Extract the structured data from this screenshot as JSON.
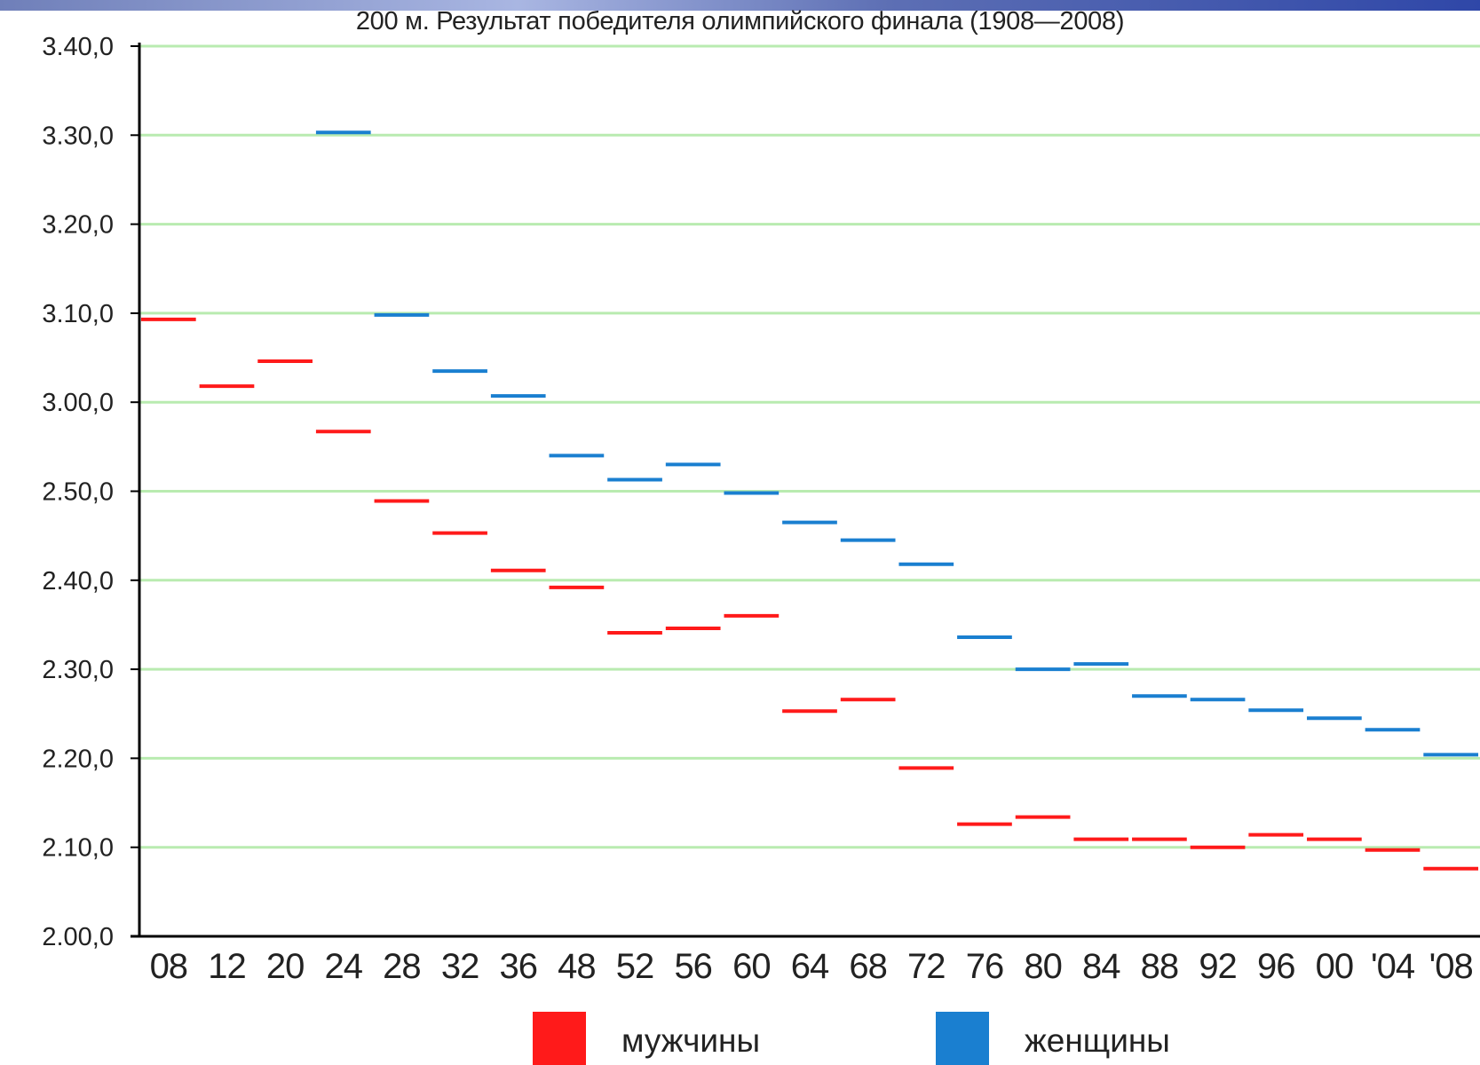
{
  "chart_data": {
    "type": "line",
    "title": "200 м. Результат победителя олимпийского финала (1908—2008)",
    "xlabel": "",
    "ylabel": "",
    "categories": [
      "08",
      "12",
      "20",
      "24",
      "28",
      "32",
      "36",
      "48",
      "52",
      "56",
      "60",
      "64",
      "68",
      "72",
      "76",
      "80",
      "84",
      "88",
      "92",
      "96",
      "00",
      "'04",
      "'08"
    ],
    "y_unit": "seconds",
    "ylim": [
      120,
      220
    ],
    "y_ticks": [
      {
        "value": 120,
        "label": "2.00,0"
      },
      {
        "value": 130,
        "label": "2.10,0"
      },
      {
        "value": 140,
        "label": "2.20,0"
      },
      {
        "value": 150,
        "label": "2.30,0"
      },
      {
        "value": 160,
        "label": "2.40,0"
      },
      {
        "value": 170,
        "label": "2.50,0"
      },
      {
        "value": 180,
        "label": "3.00,0"
      },
      {
        "value": 190,
        "label": "3.10,0"
      },
      {
        "value": 200,
        "label": "3.20,0"
      },
      {
        "value": 210,
        "label": "3.30,0"
      },
      {
        "value": 220,
        "label": "3.40,0"
      }
    ],
    "grid": true,
    "legend_position": "bottom",
    "series": [
      {
        "name": "мужчины",
        "color": "#ff1a1a",
        "values": [
          189.3,
          181.8,
          184.6,
          176.7,
          168.9,
          165.3,
          161.1,
          159.2,
          154.1,
          154.6,
          156.0,
          145.3,
          146.6,
          138.9,
          132.6,
          133.4,
          130.9,
          130.9,
          130.0,
          131.4,
          130.9,
          129.7,
          127.6
        ]
      },
      {
        "name": "женщины",
        "color": "#1a7fd0",
        "values": [
          null,
          null,
          null,
          210.3,
          189.8,
          183.5,
          180.7,
          174.0,
          171.3,
          173.0,
          169.8,
          166.5,
          164.5,
          161.8,
          153.6,
          150.0,
          150.6,
          147.0,
          146.6,
          145.4,
          144.5,
          143.2,
          140.4
        ]
      }
    ],
    "colors": {
      "grid": "#b9ebb0",
      "axis": "#000000"
    }
  }
}
